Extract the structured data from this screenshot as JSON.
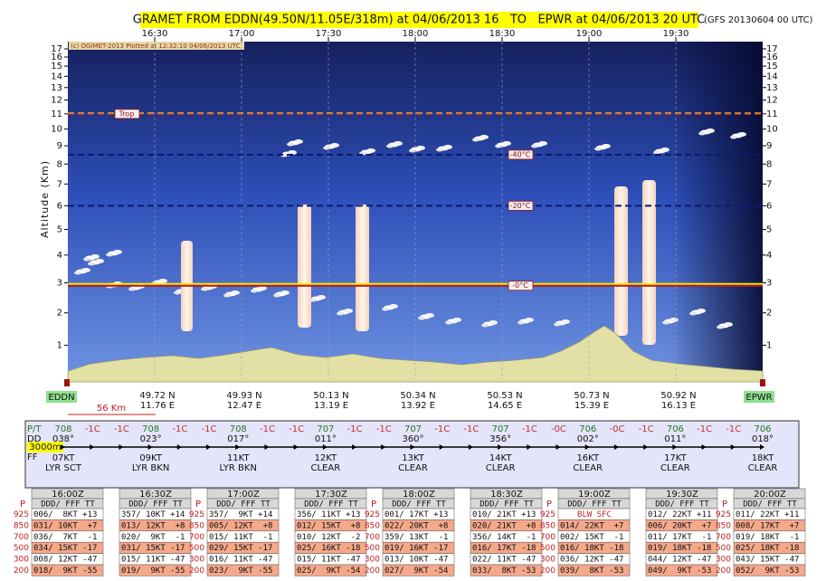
{
  "chart_data": {
    "type": "gramet",
    "title": "GRAMET FROM EDDN(49.50N/11.05E/318m) at 04/06/2013 16   TO   EPWR at 04/06/2013 20 UTC",
    "subtitle": "(GFS 20130604 00 UTC)",
    "credit": "(c) OGIMET-2013 Plotted at 12:32:10 04/06/2013 UTC",
    "y_label": "Altitude (Km)",
    "x": [
      "16:30",
      "17:00",
      "17:30",
      "18:00",
      "18:30",
      "19:00",
      "19:30"
    ],
    "ylim": [
      0,
      17
    ],
    "yticks": [
      1,
      2,
      3,
      4,
      5,
      6,
      7,
      8,
      9,
      10,
      11,
      12,
      13,
      14,
      15,
      16,
      17
    ],
    "isotherms": [
      {
        "label": "Trop",
        "value": 11,
        "color": "#d42020"
      },
      {
        "label": "-40°C",
        "value": 8.5,
        "color": "#0c1a70"
      },
      {
        "label": "-20°C",
        "value": 6,
        "color": "#0c1a70"
      },
      {
        "label": "-0°C",
        "value": 2.9,
        "color": "#b01818"
      }
    ],
    "waypoints": [
      {
        "lat": "49.72 N",
        "lon": "11.76 E"
      },
      {
        "lat": "49.93 N",
        "lon": "12.47 E"
      },
      {
        "lat": "50.13 N",
        "lon": "13.19 E"
      },
      {
        "lat": "50.34 N",
        "lon": "13.92 E"
      },
      {
        "lat": "50.53 N",
        "lon": "14.65 E"
      },
      {
        "lat": "50.73 N",
        "lon": "15.39 E"
      },
      {
        "lat": "50.92 N",
        "lon": "16.13 E"
      }
    ],
    "origin": "EDDN",
    "destination": "EPWR",
    "scale_label": "56 Km",
    "wind": {
      "row_labels": [
        "P/T",
        "DD",
        "FF"
      ],
      "level_label": "3000m",
      "pt": [
        "708",
        "-1C",
        "-1C",
        "708",
        "-1C",
        "-1C",
        "708",
        "-1C",
        "-1C",
        "707",
        "-1C",
        "-1C",
        "707",
        "-1C",
        "-1C",
        "707",
        "-1C",
        "-0C",
        "706",
        "-0C",
        "-1C",
        "706",
        "-1C",
        "-1C",
        "706"
      ],
      "dd": [
        "038°",
        "023°",
        "017°",
        "011°",
        "360°",
        "356°",
        "002°",
        "011°",
        "018°"
      ],
      "ff": [
        {
          "speed": "07KT",
          "cloud": "LYR SCT"
        },
        {
          "speed": "09KT",
          "cloud": "LYR BKN"
        },
        {
          "speed": "11KT",
          "cloud": "LYR BKN"
        },
        {
          "speed": "12KT",
          "cloud": "CLEAR"
        },
        {
          "speed": "13KT",
          "cloud": "CLEAR"
        },
        {
          "speed": "14KT",
          "cloud": "CLEAR"
        },
        {
          "speed": "16KT",
          "cloud": "CLEAR"
        },
        {
          "speed": "17KT",
          "cloud": "CLEAR"
        },
        {
          "speed": "18KT",
          "cloud": "CLEAR"
        }
      ]
    }
  },
  "soundings": {
    "pressure_label": "P",
    "pressures": [
      "925",
      "850",
      "700",
      "500",
      "300",
      "200"
    ],
    "header": "DDD/ FFF TT",
    "tables": [
      {
        "time": "16:00Z",
        "rows": [
          "006/  8KT +13",
          "031/ 10KT  +7",
          "036/  7KT  -1",
          "034/ 15KT -17",
          "008/ 12KT -47",
          "018/  9KT -55"
        ]
      },
      {
        "time": "16:30Z",
        "rows": [
          "357/ 10KT +14",
          "013/ 12KT  +8",
          "020/  9KT  -1",
          "031/ 15KT -17",
          "015/ 11KT -47",
          "019/  9KT -55"
        ]
      },
      {
        "time": "17:00Z",
        "rows": [
          "357/  9KT +14",
          "005/ 12KT  +8",
          "015/ 11KT  -1",
          "029/ 15KT -17",
          "016/ 11KT -47",
          "023/  9KT -55"
        ]
      },
      {
        "time": "17:30Z",
        "rows": [
          "356/ 11KT +13",
          "012/ 15KT  +8",
          "010/ 12KT  -2",
          "025/ 16KT -18",
          "015/ 11KT -47",
          "025/  9KT -54"
        ]
      },
      {
        "time": "18:00Z",
        "rows": [
          "001/ 17KT +13",
          "022/ 20KT  +8",
          "359/ 13KT  -1",
          "019/ 16KT -17",
          "013/ 10KT -47",
          "027/  9KT -54"
        ]
      },
      {
        "time": "18:30Z",
        "rows": [
          "010/ 21KT +13",
          "020/ 21KT  +8",
          "356/ 14KT  -1",
          "016/ 17KT -18",
          "022/ 11KT -47",
          "033/  8KT -53"
        ]
      },
      {
        "time": "19:00Z",
        "rows": [
          "BLW SFC",
          "014/ 22KT  +7",
          "002/ 15KT  -1",
          "016/ 18KT -18",
          "036/ 12KT -47",
          "039/  8KT -53"
        ]
      },
      {
        "time": "19:30Z",
        "rows": [
          "012/ 22KT +11",
          "006/ 20KT  +7",
          "011/ 17KT  -1",
          "019/ 18KT -18",
          "044/ 12KT -47",
          "049/  9KT -53"
        ]
      },
      {
        "time": "20:00Z",
        "rows": [
          "011/ 22KT +11",
          "008/ 17KT  +7",
          "019/ 18KT  -1",
          "025/ 18KT -18",
          "043/ 15KT -47",
          "052/  9KT -53"
        ]
      }
    ]
  }
}
